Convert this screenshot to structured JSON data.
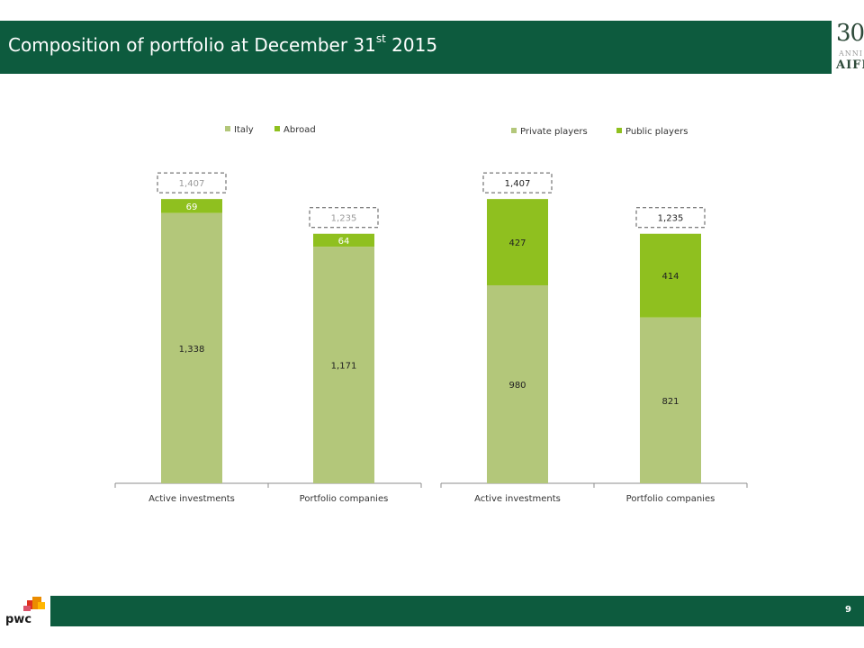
{
  "header": {
    "title_prefix": "Composition of portfolio at December 31",
    "title_sup": "st",
    "title_suffix": " 2015"
  },
  "logo": {
    "number": "30",
    "subtitle": "ANNI",
    "name": "AIFI"
  },
  "footer": {
    "page_number": "9",
    "brand": "pwc"
  },
  "colors": {
    "light_green": "#b3c77a",
    "bright_green": "#8fc01f",
    "header_green": "#0d5b3e"
  },
  "chart_data": [
    {
      "type": "bar",
      "stacked": true,
      "categories": [
        "Active investments",
        "Portfolio companies"
      ],
      "series": [
        {
          "name": "Italy",
          "values": [
            1338,
            1171
          ],
          "labels": [
            "1,338",
            "1,171"
          ]
        },
        {
          "name": "Abroad",
          "values": [
            69,
            64
          ],
          "labels": [
            "69",
            "64"
          ]
        }
      ],
      "totals": [
        "1,407",
        "1,235"
      ],
      "legend_position": "top",
      "grid": false
    },
    {
      "type": "bar",
      "stacked": true,
      "categories": [
        "Active investments",
        "Portfolio companies"
      ],
      "series": [
        {
          "name": "Private players",
          "values": [
            980,
            821
          ],
          "labels": [
            "980",
            "821"
          ]
        },
        {
          "name": "Public players",
          "values": [
            427,
            414
          ],
          "labels": [
            "427",
            "414"
          ]
        }
      ],
      "totals": [
        "1,407",
        "1,235"
      ],
      "legend_position": "top",
      "grid": false
    }
  ]
}
